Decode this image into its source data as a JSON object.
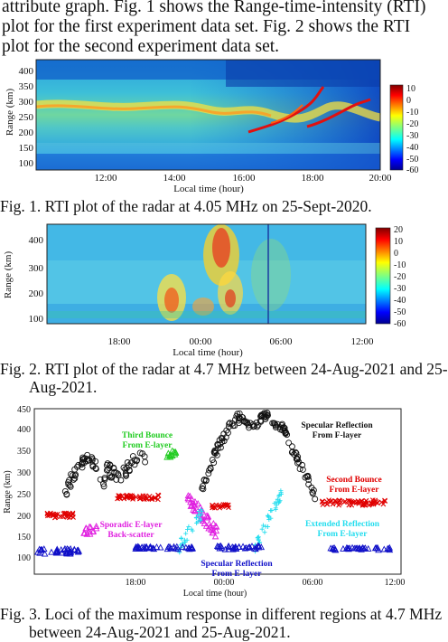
{
  "intro": {
    "lines": [
      "attribute graph. Fig. 1 shows the Range-time-intensity (RTI)",
      "plot for the first experiment data set. Fig. 2 shows the RTI",
      "plot for the second experiment data set."
    ]
  },
  "fig1": {
    "caption": "Fig. 1.   RTI plot of the radar at 4.05 MHz on 25-Sept-2020.",
    "ylabel": "Range (km)",
    "xlabel": "Local time (hour)",
    "yticks": [
      "100",
      "150",
      "200",
      "250",
      "300",
      "350",
      "400"
    ],
    "xticks": [
      "12:00",
      "14:00",
      "16:00",
      "18:00",
      "20:00"
    ],
    "colorbar_ticks": [
      "10",
      "0",
      "-10",
      "-20",
      "-30",
      "-40",
      "-50",
      "-60"
    ]
  },
  "fig2": {
    "caption": "Fig. 2.   RTI plot of the radar at 4.7 MHz between 24-Aug-2021 and 25-",
    "caption_line2": "Aug-2021.",
    "ylabel": "Range (km)",
    "xlabel": "Local time (hour)",
    "yticks": [
      "100",
      "200",
      "300",
      "400"
    ],
    "xticks": [
      "18:00",
      "00:00",
      "06:00",
      "12:00"
    ],
    "colorbar_ticks": [
      "20",
      "10",
      "0",
      "-10",
      "-20",
      "-30",
      "-40",
      "-50",
      "-60"
    ]
  },
  "fig3": {
    "caption": "Fig. 3.   Loci of the maximum response in different regions at 4.7 MHz",
    "caption_line2": "between 24-Aug-2021 and 25-Aug-2021.",
    "ylabel": "Range (km)",
    "xlabel": "Local time (hour)",
    "yticks": [
      "100",
      "150",
      "200",
      "250",
      "300",
      "350",
      "400",
      "450"
    ],
    "xticks": [
      "18:00",
      "00:00",
      "06:00",
      "12:00"
    ],
    "annotations": {
      "third_bounce": [
        "Third Bounce",
        "From E-layer"
      ],
      "specular_f": [
        "Specular Reflection",
        "From F-layer"
      ],
      "second_bounce": [
        "Second Bounce",
        "From E-layer"
      ],
      "sporadic": [
        "Sporadic E-layer",
        "Back-scatter"
      ],
      "extended": [
        "Extended Reflection",
        "From E-layer"
      ],
      "specular_e": [
        "Specular Reflection",
        "From E-layer"
      ]
    }
  },
  "colors": {
    "black": "#111111",
    "green": "#22cc22",
    "red": "#e00000",
    "magenta": "#e020e0",
    "cyan": "#22ddee",
    "blue": "#1010c8"
  }
}
